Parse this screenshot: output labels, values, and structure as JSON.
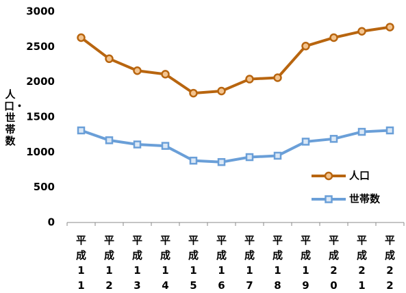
{
  "chart_data": {
    "type": "line",
    "ylabel": "人口・世帯数",
    "categories": [
      "平成11",
      "平成12",
      "平成13",
      "平成14",
      "平成15",
      "平成16",
      "平成17",
      "平成18",
      "平成19",
      "平成20",
      "平成21",
      "平成22"
    ],
    "series": [
      {
        "name": "人口",
        "color": "#b8650f",
        "marker": "circle",
        "values": [
          2630,
          2330,
          2160,
          2110,
          1840,
          1870,
          2040,
          2060,
          2510,
          2630,
          2720,
          2780
        ]
      },
      {
        "name": "世帯数",
        "color": "#6a9fd8",
        "marker": "square",
        "values": [
          1310,
          1170,
          1110,
          1090,
          880,
          860,
          930,
          950,
          1150,
          1190,
          1290,
          1310
        ]
      }
    ],
    "ylim": [
      0,
      3000
    ],
    "yticks": [
      0,
      500,
      1000,
      1500,
      2000,
      2500,
      3000
    ],
    "grid": false
  }
}
